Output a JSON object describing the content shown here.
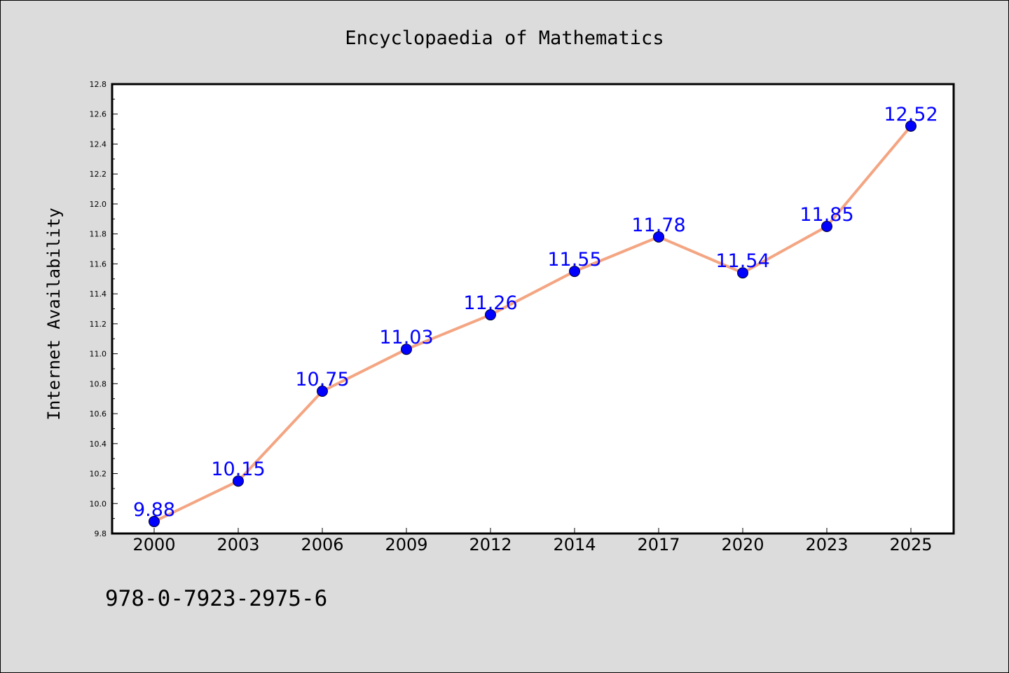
{
  "chart_data": {
    "type": "line",
    "title": "Encyclopaedia of Mathematics",
    "xlabel": "",
    "ylabel": "Internet Availability",
    "categories": [
      "2000",
      "2003",
      "2006",
      "2009",
      "2012",
      "2014",
      "2017",
      "2020",
      "2023",
      "2025"
    ],
    "series": [
      {
        "values": [
          9.88,
          10.15,
          10.75,
          11.03,
          11.26,
          11.55,
          11.78,
          11.54,
          11.85,
          12.52
        ]
      }
    ],
    "data_labels": [
      "9.88",
      "10.15",
      "10.75",
      "11.03",
      "11.26",
      "11.55",
      "11.78",
      "11.54",
      "11.85",
      "12.52"
    ],
    "ylim": [
      9.8,
      12.8
    ],
    "yticks": [
      "9.8",
      "10.0",
      "10.2",
      "10.4",
      "10.6",
      "10.8",
      "11.0",
      "11.2",
      "11.4",
      "11.6",
      "11.8",
      "12.0",
      "12.2",
      "12.4",
      "12.6",
      "12.8"
    ],
    "grid": false,
    "legend": "none",
    "colors": {
      "line": "#f4a582",
      "marker": "#0000ff",
      "label": "#0000ff",
      "background": "#dcdcdc",
      "plot_area": "#ffffff"
    }
  },
  "footer": {
    "isbn": "978-0-7923-2975-6"
  }
}
